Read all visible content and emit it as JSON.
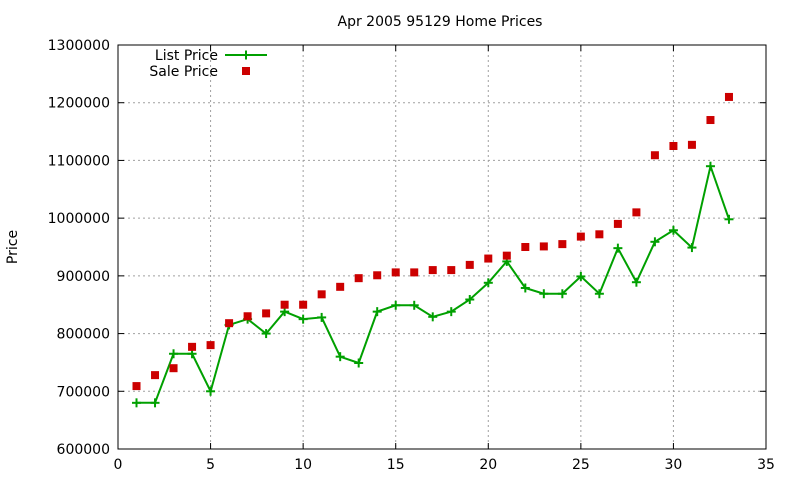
{
  "chart_data": {
    "type": "line",
    "title": "Apr 2005 95129 Home Prices",
    "xlabel": "",
    "ylabel": "Price",
    "xlim": [
      0,
      35
    ],
    "ylim": [
      600000,
      1300000
    ],
    "x_ticks": [
      0,
      5,
      10,
      15,
      20,
      25,
      30,
      35
    ],
    "y_ticks": [
      600000,
      700000,
      800000,
      900000,
      1000000,
      1100000,
      1200000,
      1300000
    ],
    "x_tick_labels": [
      "0",
      "5",
      "10",
      "15",
      "20",
      "25",
      "30",
      "35"
    ],
    "y_tick_labels": [
      "600000",
      "700000",
      "800000",
      "900000",
      "1000000",
      "1100000",
      "1200000",
      "1300000"
    ],
    "grid": true,
    "legend_position": "top-left",
    "series": [
      {
        "name": "List Price",
        "style": "line-with-plus-markers",
        "color": "#00a000",
        "x": [
          1,
          2,
          3,
          4,
          5,
          6,
          7,
          8,
          9,
          10,
          11,
          12,
          13,
          14,
          15,
          16,
          17,
          18,
          19,
          20,
          21,
          22,
          23,
          24,
          25,
          26,
          27,
          28,
          29,
          30,
          31,
          32,
          33
        ],
        "values": [
          680000,
          680000,
          765000,
          765000,
          700000,
          815000,
          825000,
          800000,
          838000,
          825000,
          828000,
          760000,
          749000,
          838000,
          849000,
          849000,
          829000,
          838000,
          859000,
          888000,
          925000,
          879000,
          869000,
          869000,
          899000,
          869000,
          948000,
          889000,
          959000,
          979000,
          949000,
          1090000,
          998000
        ]
      },
      {
        "name": "Sale Price",
        "style": "square-markers",
        "color": "#cc0000",
        "x": [
          1,
          2,
          3,
          4,
          5,
          6,
          7,
          8,
          9,
          10,
          11,
          12,
          13,
          14,
          15,
          16,
          17,
          18,
          19,
          20,
          21,
          22,
          23,
          24,
          25,
          26,
          27,
          28,
          29,
          30,
          31,
          32,
          33
        ],
        "values": [
          709000,
          728000,
          740000,
          777000,
          780000,
          818000,
          830000,
          835000,
          850000,
          850000,
          868000,
          881000,
          896000,
          901000,
          906000,
          906000,
          910000,
          910000,
          919000,
          930000,
          935000,
          950000,
          951000,
          955000,
          968000,
          972000,
          990000,
          1010000,
          1109000,
          1125000,
          1127000,
          1170000,
          1210000
        ]
      }
    ]
  }
}
